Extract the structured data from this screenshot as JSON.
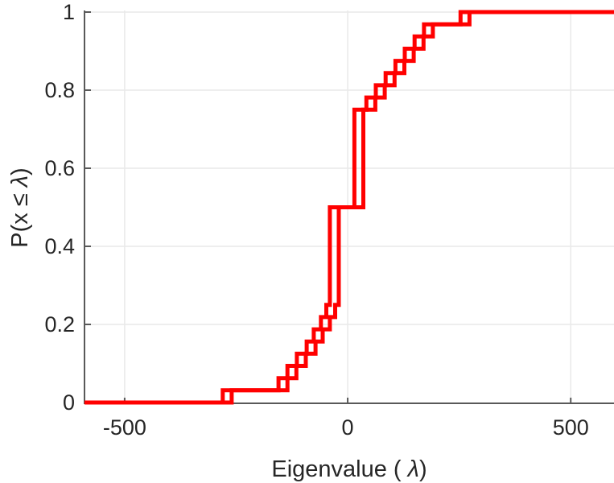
{
  "figure": {
    "background": "#ffffff",
    "type": "matlab-style-ecdf-plot"
  },
  "chart_data": {
    "type": "line",
    "subtype": "step-ecdf-stairs",
    "title": "",
    "xlabel": "Eigenvalue ( λ)",
    "ylabel": "P(x ≤ λ)",
    "xlabel_parts": {
      "prefix": "Eigenvalue ( ",
      "lambda": "λ",
      "suffix": ")"
    },
    "ylabel_parts": {
      "prefix": "P(x ≤ ",
      "lambda": "λ",
      "suffix": ")"
    },
    "xlim": [
      -590,
      597
    ],
    "ylim": [
      0,
      1
    ],
    "grid": true,
    "grid_color": "#e9e9e9",
    "axis_color": "#595959",
    "tick_label_color": "#262626",
    "line_color": "#ff0000",
    "line_width": 5,
    "n_points_per_curve": 32,
    "step_increment": 0.03125,
    "x_ticks": [
      {
        "value": -500,
        "label": "-500"
      },
      {
        "value": 0,
        "label": "0"
      },
      {
        "value": 500,
        "label": "500"
      }
    ],
    "y_ticks": [
      {
        "value": 0,
        "label": "0"
      },
      {
        "value": 0.2,
        "label": "0.2"
      },
      {
        "value": 0.4,
        "label": "0.4"
      },
      {
        "value": 0.6,
        "label": "0.6"
      },
      {
        "value": 0.8,
        "label": "0.8"
      },
      {
        "value": 1,
        "label": "1"
      }
    ],
    "series": [
      {
        "name": "ecdf-curve-1",
        "color": "#ff0000",
        "eigenvalues": [
          -280,
          -155,
          -135,
          -114,
          -92,
          -76,
          -60,
          -48,
          -40,
          -40,
          -40,
          -40,
          -40,
          -40,
          -40,
          -40,
          15,
          15,
          15,
          15,
          15,
          15,
          15,
          15,
          42,
          63,
          85,
          107,
          128,
          150,
          171,
          253
        ]
      },
      {
        "name": "ecdf-curve-2",
        "color": "#ff0000",
        "eigenvalues": [
          -260,
          -135,
          -115,
          -94,
          -72,
          -56,
          -40,
          -28,
          -20,
          -20,
          -20,
          -20,
          -20,
          -20,
          -20,
          -20,
          35,
          35,
          35,
          35,
          35,
          35,
          35,
          35,
          62,
          83,
          105,
          127,
          148,
          170,
          191,
          273
        ]
      }
    ]
  }
}
